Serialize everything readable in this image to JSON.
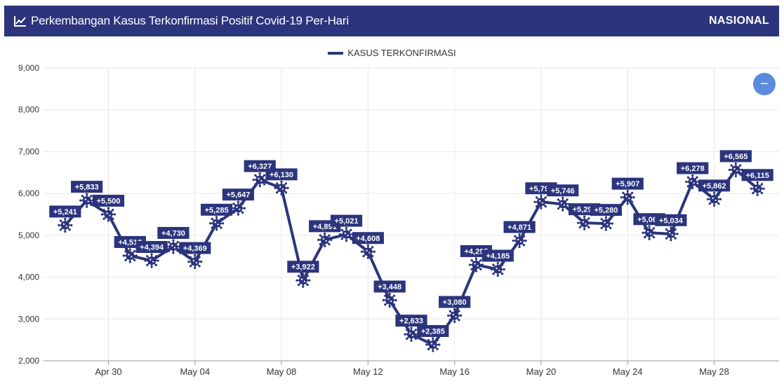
{
  "header": {
    "title": "Perkembangan Kasus Terkonfirmasi Positif Covid-19 Per-Hari",
    "region": "NASIONAL"
  },
  "zoom_button": {
    "label": "−"
  },
  "chart_data": {
    "type": "line",
    "x_ticks": [
      "Apr 30",
      "May 04",
      "May 08",
      "May 12",
      "May 16",
      "May 20",
      "May 24",
      "May 28"
    ],
    "y_ticks": [
      "2,000",
      "3,000",
      "4,000",
      "5,000",
      "6,000",
      "7,000",
      "8,000",
      "9,000"
    ],
    "ylim": [
      2000,
      9000
    ],
    "xlim": [
      "Apr 27",
      "May 31"
    ],
    "grid": true,
    "legend_position": "top-center",
    "series": [
      {
        "name": "KASUS TERKONFIRMASI",
        "color": "#2b347c",
        "x": [
          "Apr 28",
          "Apr 29",
          "Apr 30",
          "May 01",
          "May 02",
          "May 03",
          "May 04",
          "May 05",
          "May 06",
          "May 07",
          "May 08",
          "May 09",
          "May 10",
          "May 11",
          "May 12",
          "May 13",
          "May 14",
          "May 15",
          "May 16",
          "May 17",
          "May 18",
          "May 19",
          "May 20",
          "May 21",
          "May 22",
          "May 23",
          "May 24",
          "May 25",
          "May 26",
          "May 27",
          "May 28",
          "May 29",
          "May 30"
        ],
        "values": [
          5241,
          5833,
          5500,
          4512,
          4394,
          4730,
          4369,
          5285,
          5647,
          6327,
          6130,
          3922,
          4891,
          5021,
          4608,
          3448,
          2633,
          2385,
          3080,
          4295,
          4185,
          4871,
          5797,
          5746,
          5296,
          5280,
          5907,
          5060,
          5034,
          6278,
          5862,
          6565,
          6115
        ],
        "labels": [
          "+5,241",
          "+5,833",
          "+5,500",
          "+4,512",
          "+4,394",
          "+4,730",
          "+4,369",
          "+5,285",
          "+5,647",
          "+6,327",
          "+6,130",
          "+3,922",
          "+4,891",
          "+5,021",
          "+4,608",
          "+3,448",
          "+2,633",
          "+2,385",
          "+3,080",
          "+4,295",
          "+4,185",
          "+4,871",
          "+5,797",
          "+5,746",
          "+5,296",
          "+5,280",
          "+5,907",
          "+5,060",
          "+5,034",
          "+6,278",
          "+5,862",
          "+6,565",
          "+6,115"
        ]
      }
    ]
  }
}
